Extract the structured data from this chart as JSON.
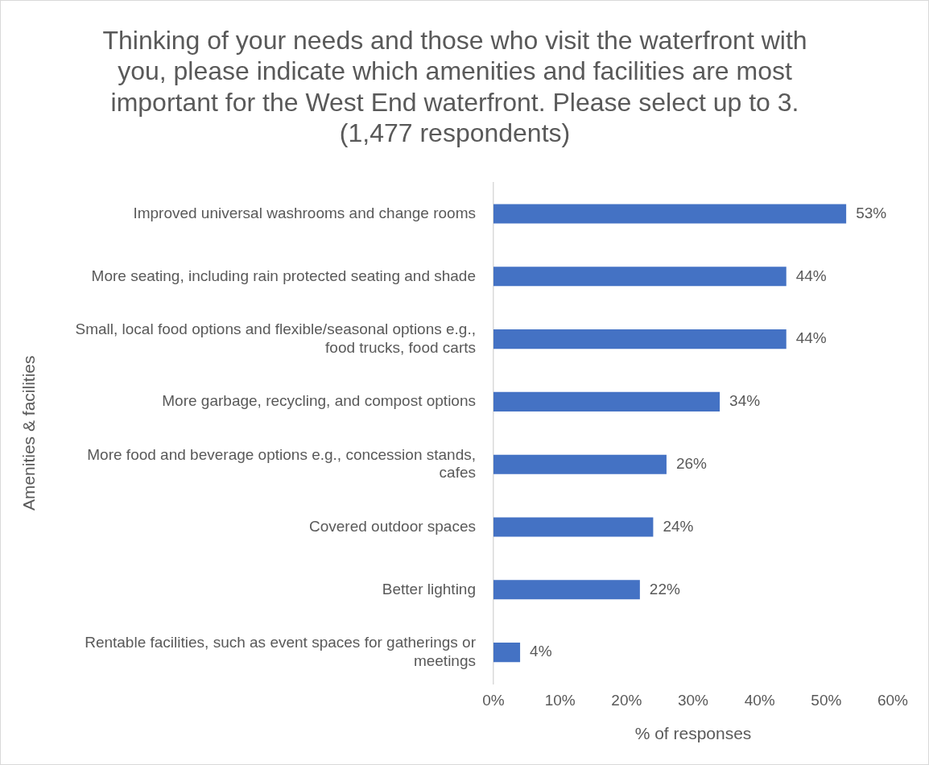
{
  "chart_data": {
    "type": "bar",
    "orientation": "horizontal",
    "title": "Thinking of your needs and those who visit the waterfront with you, please indicate which amenities and facilities are most important for the West End waterfront. Please select up to 3. (1,477 respondents)",
    "xlabel": "% of responses",
    "ylabel": "Amenities & facilities",
    "categories": [
      "Improved universal washrooms and change rooms",
      "More seating, including rain protected seating and shade",
      "Small, local food options and flexible/seasonal options e.g., food trucks, food carts",
      "More garbage, recycling, and compost options",
      "More food and beverage options e.g., concession stands, cafes",
      "Covered outdoor spaces",
      "Better lighting",
      "Rentable facilities, such as event spaces for gatherings or meetings"
    ],
    "values": [
      53,
      44,
      44,
      34,
      26,
      24,
      22,
      4
    ],
    "value_labels": [
      "53%",
      "44%",
      "44%",
      "34%",
      "26%",
      "24%",
      "22%",
      "4%"
    ],
    "color": "#4472c4",
    "xlim": [
      0,
      60
    ],
    "xticks": [
      {
        "value": 0,
        "label": "0%"
      },
      {
        "value": 10,
        "label": "10%"
      },
      {
        "value": 20,
        "label": "20%"
      },
      {
        "value": 30,
        "label": "30%"
      },
      {
        "value": 40,
        "label": "40%"
      },
      {
        "value": 50,
        "label": "50%"
      },
      {
        "value": 60,
        "label": "60%"
      }
    ],
    "grid": false,
    "legend": false
  }
}
